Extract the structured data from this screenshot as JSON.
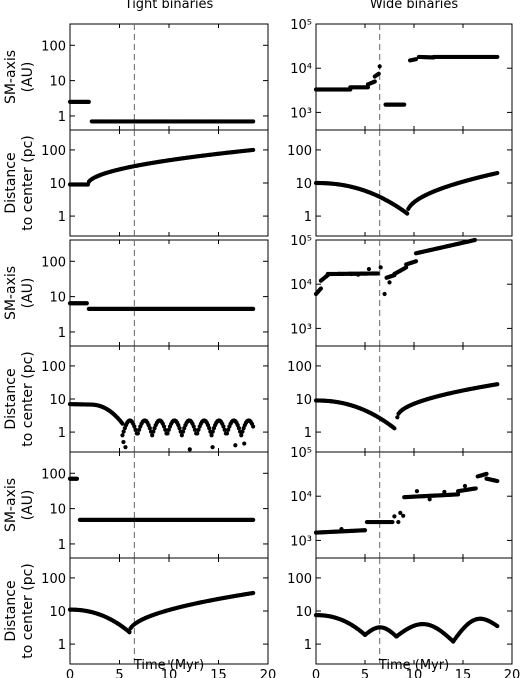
{
  "column_titles": [
    "Tight binaries",
    "Wide binaries"
  ],
  "chart_data": {
    "type": "scatter",
    "xlabel": "Time (Myr)",
    "xlim": [
      0,
      20
    ],
    "xticks": [
      0,
      5,
      10,
      15,
      20
    ],
    "vline_x": 6.5,
    "row_labels": {
      "sm_axis": [
        "SM-axis",
        "(AU)"
      ],
      "distance": [
        "Distance",
        "to center (pc)"
      ]
    },
    "panels": [
      {
        "group": 1,
        "column": "tight",
        "quantity": "sm_axis",
        "yscale": "log",
        "ylim": [
          0.4,
          400
        ],
        "yticks": [
          1,
          10,
          100
        ],
        "ytick_labels": [
          "1",
          "10",
          "100"
        ],
        "segments": [
          [
            0.0,
            1.9,
            2.5,
            2.5
          ],
          [
            2.2,
            18.5,
            0.7,
            0.7
          ]
        ]
      },
      {
        "group": 1,
        "column": "wide",
        "quantity": "sm_axis",
        "yscale": "log",
        "ylim": [
          400,
          100000
        ],
        "yticks": [
          1000,
          10000,
          100000
        ],
        "ytick_labels": [
          "10³",
          "10⁴",
          "10⁵"
        ],
        "segments": [
          [
            0.0,
            3.5,
            3300,
            3300
          ],
          [
            3.5,
            5.3,
            3700,
            3700
          ],
          [
            5.3,
            6.0,
            4300,
            5000
          ],
          [
            6.0,
            6.4,
            6500,
            7500
          ],
          [
            7.1,
            9.0,
            1500,
            1500
          ],
          [
            9.6,
            10.2,
            15000,
            16000
          ],
          [
            10.5,
            12.0,
            18000,
            17500
          ],
          [
            12.0,
            18.5,
            18000,
            18000
          ]
        ],
        "points": [
          [
            6.5,
            11000
          ]
        ]
      },
      {
        "group": 1,
        "column": "tight",
        "quantity": "distance",
        "yscale": "log",
        "ylim": [
          0.25,
          400
        ],
        "yticks": [
          1,
          10,
          100
        ],
        "ytick_labels": [
          "1",
          "10",
          "100"
        ],
        "segments": [
          [
            0.0,
            1.8,
            9,
            9
          ]
        ],
        "curves": [
          {
            "x0": 1.8,
            "x1": 18.5,
            "y0": 9,
            "y1": 100,
            "shape": "rise"
          }
        ]
      },
      {
        "group": 1,
        "column": "wide",
        "quantity": "distance",
        "yscale": "log",
        "ylim": [
          0.25,
          400
        ],
        "yticks": [
          1,
          10,
          100
        ],
        "ytick_labels": [
          "1",
          "10",
          "100"
        ],
        "curves": [
          {
            "x0": 0,
            "x1": 9.3,
            "y0": 10,
            "y1": 1.2,
            "shape": "dip"
          },
          {
            "x0": 9.3,
            "x1": 18.5,
            "y0": 1.2,
            "y1": 20,
            "shape": "rise"
          }
        ]
      },
      {
        "group": 2,
        "column": "tight",
        "quantity": "sm_axis",
        "yscale": "log",
        "ylim": [
          0.4,
          400
        ],
        "yticks": [
          1,
          10,
          100
        ],
        "ytick_labels": [
          "1",
          "10",
          "100"
        ],
        "segments": [
          [
            0.0,
            1.7,
            6.5,
            6.5
          ],
          [
            1.9,
            18.5,
            4.5,
            4.5
          ]
        ]
      },
      {
        "group": 2,
        "column": "wide",
        "quantity": "sm_axis",
        "yscale": "log",
        "ylim": [
          400,
          100000
        ],
        "yticks": [
          1000,
          10000,
          100000
        ],
        "ytick_labels": [
          "10³",
          "10⁴",
          "10⁵"
        ],
        "segments": [
          [
            0.0,
            0.5,
            6000,
            8000
          ],
          [
            0.5,
            1.2,
            12000,
            16000
          ],
          [
            1.2,
            6.3,
            17000,
            17500
          ],
          [
            7.2,
            8.0,
            14000,
            16000
          ],
          [
            8.0,
            9.2,
            17000,
            24000
          ],
          [
            9.2,
            10.2,
            28000,
            33000
          ],
          [
            10.2,
            18.5,
            50000,
            130000
          ]
        ],
        "points": [
          [
            5.4,
            22000
          ],
          [
            6.6,
            24000
          ],
          [
            7.0,
            6000
          ],
          [
            7.5,
            11000
          ],
          [
            3.6,
            17000
          ],
          [
            4.3,
            16500
          ]
        ]
      },
      {
        "group": 2,
        "column": "tight",
        "quantity": "distance",
        "yscale": "log",
        "ylim": [
          0.25,
          400
        ],
        "yticks": [
          1,
          10,
          100
        ],
        "ytick_labels": [
          "1",
          "10",
          "100"
        ],
        "segments": [
          [
            0.0,
            2.0,
            7,
            6.8
          ]
        ],
        "curves": [
          {
            "x0": 2.0,
            "x1": 5.3,
            "y0": 6.8,
            "y1": 1.8,
            "shape": "dip"
          },
          {
            "x0": 5.3,
            "x1": 18.5,
            "y0": 0.8,
            "y1": 0.8,
            "shape": "oscillate",
            "amp": 0.45,
            "period": 1.5
          }
        ],
        "points": [
          [
            5.4,
            0.5
          ],
          [
            5.6,
            0.35
          ],
          [
            12.1,
            0.3
          ],
          [
            14.4,
            0.35
          ],
          [
            16.7,
            0.4
          ],
          [
            17.6,
            0.45
          ]
        ]
      },
      {
        "group": 2,
        "column": "wide",
        "quantity": "distance",
        "yscale": "log",
        "ylim": [
          0.25,
          400
        ],
        "yticks": [
          1,
          10,
          100
        ],
        "ytick_labels": [
          "1",
          "10",
          "100"
        ],
        "curves": [
          {
            "x0": 0,
            "x1": 8.0,
            "y0": 9,
            "y1": 1.3,
            "shape": "dip"
          },
          {
            "x0": 8.3,
            "x1": 18.5,
            "y0": 2.8,
            "y1": 28,
            "shape": "rise"
          }
        ]
      },
      {
        "group": 3,
        "column": "tight",
        "quantity": "sm_axis",
        "yscale": "log",
        "ylim": [
          0.4,
          400
        ],
        "yticks": [
          1,
          10,
          100
        ],
        "ytick_labels": [
          "1",
          "10",
          "100"
        ],
        "segments": [
          [
            0.0,
            0.7,
            70,
            70
          ],
          [
            1.0,
            18.5,
            4.8,
            4.8
          ]
        ]
      },
      {
        "group": 3,
        "column": "wide",
        "quantity": "sm_axis",
        "yscale": "log",
        "ylim": [
          400,
          100000
        ],
        "yticks": [
          1000,
          10000,
          100000
        ],
        "ytick_labels": [
          "10³",
          "10⁴",
          "10⁵"
        ],
        "segments": [
          [
            0.0,
            5.0,
            1500,
            1700
          ],
          [
            5.2,
            7.8,
            2600,
            2600
          ],
          [
            9.0,
            14.5,
            9500,
            11000
          ],
          [
            14.5,
            16.3,
            13000,
            15000
          ],
          [
            16.5,
            17.4,
            28000,
            32000
          ],
          [
            17.4,
            18.5,
            25000,
            22000
          ]
        ],
        "points": [
          [
            2.6,
            1800
          ],
          [
            8.0,
            3500
          ],
          [
            8.4,
            2600
          ],
          [
            8.6,
            4200
          ],
          [
            8.9,
            3600
          ],
          [
            10.3,
            13000
          ],
          [
            11.6,
            8500
          ],
          [
            13.1,
            12500
          ],
          [
            15.2,
            17000
          ]
        ]
      },
      {
        "group": 3,
        "column": "tight",
        "quantity": "distance",
        "yscale": "log",
        "ylim": [
          0.25,
          400
        ],
        "yticks": [
          1,
          10,
          100
        ],
        "ytick_labels": [
          "1",
          "10",
          "100"
        ],
        "curves": [
          {
            "x0": 0,
            "x1": 6.0,
            "y0": 11,
            "y1": 2.3,
            "shape": "dip"
          },
          {
            "x0": 6.0,
            "x1": 18.5,
            "y0": 2.3,
            "y1": 35,
            "shape": "rise"
          }
        ]
      },
      {
        "group": 3,
        "column": "wide",
        "quantity": "distance",
        "yscale": "log",
        "ylim": [
          0.25,
          400
        ],
        "yticks": [
          1,
          10,
          100
        ],
        "ytick_labels": [
          "1",
          "10",
          "100"
        ],
        "curves": [
          {
            "x0": 0,
            "x1": 5.0,
            "y0": 7.5,
            "y1": 1.9,
            "shape": "dip"
          },
          {
            "x0": 5.0,
            "x1": 8.2,
            "y0": 1.9,
            "y1": 1.7,
            "shape": "hump",
            "peak": 3.2
          },
          {
            "x0": 8.2,
            "x1": 14.0,
            "y0": 1.7,
            "y1": 1.2,
            "shape": "hump",
            "peak": 4.0
          },
          {
            "x0": 14.0,
            "x1": 18.5,
            "y0": 1.2,
            "y1": 3.5,
            "shape": "hump",
            "peak": 5.5
          }
        ]
      }
    ]
  }
}
